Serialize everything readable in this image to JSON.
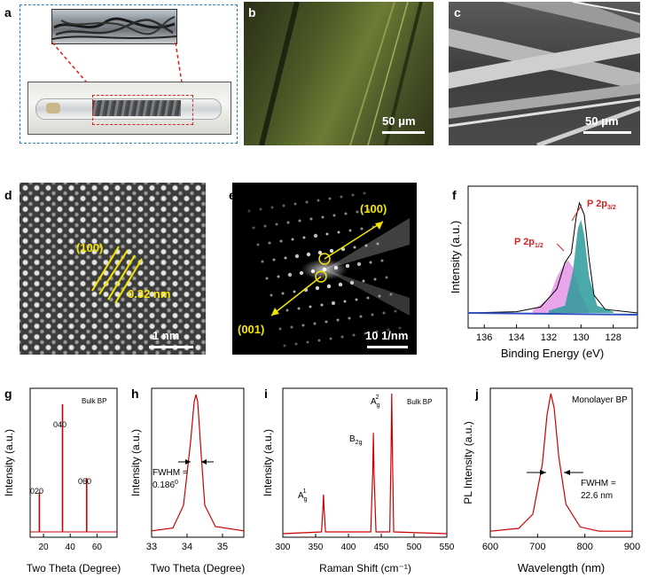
{
  "panels": {
    "a": {
      "letter": "a"
    },
    "b": {
      "letter": "b",
      "scale": "50 μm"
    },
    "c": {
      "letter": "c",
      "scale": "50 μm"
    },
    "d": {
      "letter": "d",
      "plane": "(100)",
      "spacing": "0.32 nm",
      "scale": "1 nm"
    },
    "e": {
      "letter": "e",
      "dir1": "(100)",
      "dir2": "(001)",
      "scale": "10 1/nm"
    },
    "f": {
      "letter": "f",
      "peak1": "P 2p",
      "peak1_sub": "3/2",
      "peak2": "P 2p",
      "peak2_sub": "1/2"
    },
    "g": {
      "letter": "g",
      "label": "Bulk BP",
      "peaks": [
        "020",
        "040",
        "060"
      ]
    },
    "h": {
      "letter": "h",
      "fwhm_line1": "FWHM =",
      "fwhm_line2": "0.186",
      "fwhm_sup": "0"
    },
    "i": {
      "letter": "i",
      "label": "Bulk BP",
      "peaks": [
        "A",
        "B",
        "A"
      ]
    },
    "j": {
      "letter": "j",
      "label": "Monolayer BP",
      "fwhm_line1": "FWHM =",
      "fwhm_line2": "22.6 nm"
    }
  },
  "chart_data": [
    {
      "id": "f",
      "type": "line",
      "xlabel": "Binding Energy (eV)",
      "ylabel": "Intensity (a.u.)",
      "xlim": [
        137,
        126.5
      ],
      "xticks": [
        136,
        134,
        132,
        130,
        128
      ],
      "series": [
        {
          "name": "P 2p3/2",
          "x": [
            132,
            131,
            130.5,
            130.2,
            130,
            129.8,
            129.5,
            129,
            128
          ],
          "y": [
            0.02,
            0.06,
            0.35,
            0.7,
            0.78,
            0.65,
            0.3,
            0.06,
            0.01
          ],
          "color": "#2a9a9a"
        },
        {
          "name": "P 2p1/2",
          "x": [
            133,
            132,
            131.5,
            131,
            130.8,
            130.5,
            130,
            129.5
          ],
          "y": [
            0.02,
            0.12,
            0.3,
            0.42,
            0.44,
            0.38,
            0.15,
            0.02
          ],
          "color": "#e07fe0"
        }
      ]
    },
    {
      "id": "g",
      "type": "line",
      "xlabel": "Two Theta (Degree)",
      "ylabel": "Intensity (a.u.)",
      "xlim": [
        10,
        75
      ],
      "xticks": [
        20,
        40,
        60
      ],
      "series": [
        {
          "x": [
            16.9,
            34.2,
            52.3
          ],
          "y": [
            0.28,
            0.9,
            0.38
          ],
          "color": "#cc0000"
        }
      ]
    },
    {
      "id": "h",
      "type": "line",
      "xlabel": "Two Theta (Degree)",
      "ylabel": "Intensity (a.u.)",
      "xlim": [
        33,
        35.6
      ],
      "xticks": [
        33,
        34,
        35
      ],
      "series": [
        {
          "x": [
            33,
            33.6,
            33.9,
            34.1,
            34.2,
            34.25,
            34.3,
            34.4,
            34.5,
            34.8,
            35.6
          ],
          "y": [
            0.02,
            0.04,
            0.2,
            0.65,
            0.93,
            0.98,
            0.93,
            0.55,
            0.2,
            0.05,
            0.02
          ],
          "color": "#cc0000"
        }
      ]
    },
    {
      "id": "i",
      "type": "line",
      "xlabel": "Raman Shift (cm⁻¹)",
      "ylabel": "Intensity (a.u.)",
      "xlim": [
        300,
        550
      ],
      "xticks": [
        300,
        350,
        400,
        450,
        500,
        550
      ],
      "series": [
        {
          "x": [
            362,
            438,
            466
          ],
          "y": [
            0.28,
            0.72,
            1.0
          ],
          "color": "#cc0000"
        }
      ]
    },
    {
      "id": "j",
      "type": "line",
      "xlabel": "Wavelength (nm)",
      "ylabel": "PL Intensity (a.u.)",
      "xlim": [
        600,
        900
      ],
      "xticks": [
        600,
        700,
        800,
        900
      ],
      "series": [
        {
          "x": [
            600,
            660,
            690,
            710,
            720,
            728,
            735,
            745,
            760,
            790,
            830,
            900
          ],
          "y": [
            0.03,
            0.05,
            0.15,
            0.5,
            0.85,
            1.0,
            0.9,
            0.55,
            0.22,
            0.06,
            0.03,
            0.03
          ],
          "color": "#cc0000"
        }
      ]
    }
  ]
}
